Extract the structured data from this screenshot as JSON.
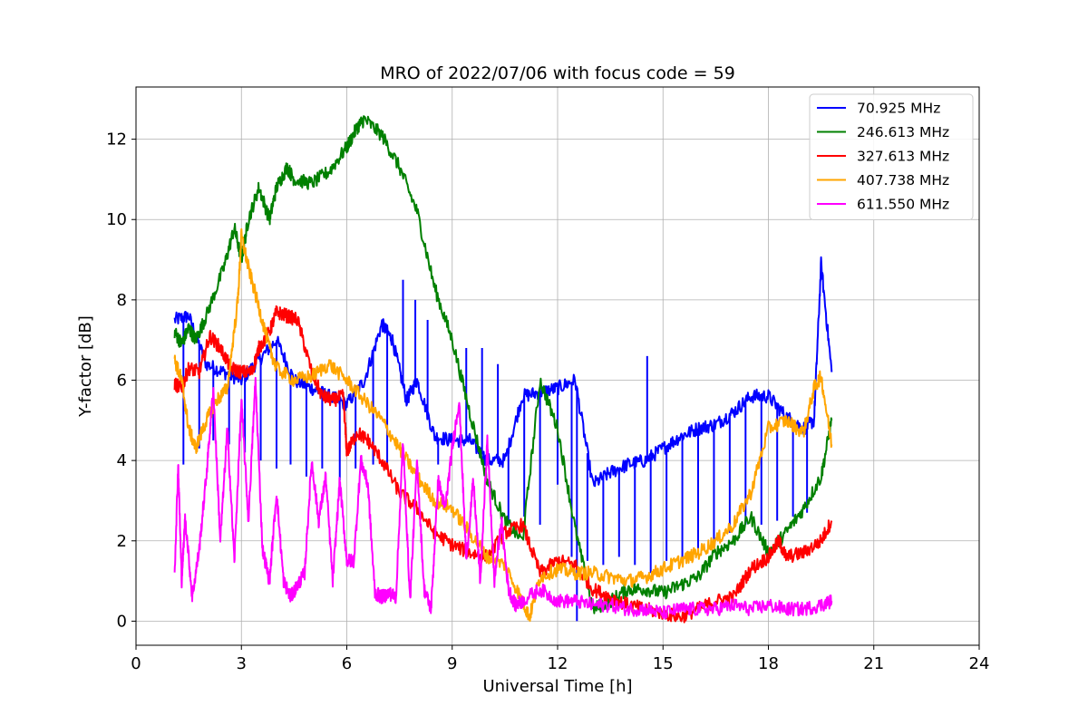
{
  "chart_data": {
    "type": "line",
    "title": "MRO of 2022/07/06 with focus code = 59",
    "xlabel": "Universal Time [h]",
    "ylabel": "Y-factor [dB]",
    "xlim": [
      0,
      24
    ],
    "ylim": [
      -0.6,
      13.3
    ],
    "xticks": [
      0,
      3,
      6,
      9,
      12,
      15,
      18,
      21,
      24
    ],
    "yticks": [
      0,
      2,
      4,
      6,
      8,
      10,
      12
    ],
    "grid": true,
    "legend_position": "top-right",
    "series": [
      {
        "name": " 70.925 MHz",
        "color": "#0000ff",
        "x": [
          1.1,
          1.5,
          2.0,
          2.5,
          3.0,
          3.5,
          4.0,
          4.5,
          5.0,
          5.5,
          6.0,
          6.5,
          7.0,
          7.3,
          7.7,
          8.0,
          8.5,
          9.0,
          9.5,
          10.0,
          10.5,
          11.0,
          11.5,
          12.0,
          12.5,
          13.0,
          13.5,
          14.0,
          14.5,
          15.0,
          15.5,
          16.0,
          16.5,
          17.0,
          17.5,
          18.0,
          18.5,
          19.0,
          19.3,
          19.5,
          19.8
        ],
        "y": [
          7.5,
          7.6,
          6.4,
          6.2,
          6.0,
          6.5,
          7.0,
          6.0,
          5.8,
          5.6,
          5.4,
          6.0,
          7.4,
          7.0,
          5.5,
          6.0,
          4.6,
          4.5,
          4.5,
          4.0,
          4.0,
          5.6,
          5.7,
          5.8,
          6.0,
          3.4,
          3.7,
          3.9,
          4.0,
          4.3,
          4.6,
          4.8,
          4.9,
          5.2,
          5.6,
          5.6,
          5.1,
          4.8,
          5.0,
          8.9,
          6.2
        ],
        "spikes": [
          {
            "x": 1.35,
            "y": 3.9
          },
          {
            "x": 1.8,
            "y": 4.3
          },
          {
            "x": 2.2,
            "y": 4.5
          },
          {
            "x": 2.65,
            "y": 4.4
          },
          {
            "x": 3.1,
            "y": 4.2
          },
          {
            "x": 3.55,
            "y": 4.0
          },
          {
            "x": 4.0,
            "y": 3.8
          },
          {
            "x": 4.4,
            "y": 3.9
          },
          {
            "x": 4.85,
            "y": 3.6
          },
          {
            "x": 5.3,
            "y": 3.8
          },
          {
            "x": 5.8,
            "y": 3.5
          },
          {
            "x": 6.25,
            "y": 3.8
          },
          {
            "x": 6.75,
            "y": 3.9
          },
          {
            "x": 7.15,
            "y": 3.8
          },
          {
            "x": 7.6,
            "y": 8.5
          },
          {
            "x": 7.95,
            "y": 8.0
          },
          {
            "x": 8.3,
            "y": 7.5
          },
          {
            "x": 8.6,
            "y": 3.9
          },
          {
            "x": 9.4,
            "y": 6.8
          },
          {
            "x": 9.85,
            "y": 6.8
          },
          {
            "x": 10.3,
            "y": 6.4
          },
          {
            "x": 10.6,
            "y": 2.5
          },
          {
            "x": 11.05,
            "y": 2.6
          },
          {
            "x": 11.5,
            "y": 2.4
          },
          {
            "x": 12.0,
            "y": 3.4
          },
          {
            "x": 12.4,
            "y": 1.6
          },
          {
            "x": 12.85,
            "y": 1.5
          },
          {
            "x": 13.3,
            "y": 1.4
          },
          {
            "x": 13.75,
            "y": 1.6
          },
          {
            "x": 14.2,
            "y": 1.4
          },
          {
            "x": 14.55,
            "y": 6.6
          },
          {
            "x": 14.65,
            "y": 1.2
          },
          {
            "x": 15.1,
            "y": 1.5
          },
          {
            "x": 15.55,
            "y": 1.6
          },
          {
            "x": 16.0,
            "y": 1.8
          },
          {
            "x": 16.45,
            "y": 2.0
          },
          {
            "x": 16.9,
            "y": 2.2
          },
          {
            "x": 17.35,
            "y": 2.4
          },
          {
            "x": 17.8,
            "y": 2.4
          },
          {
            "x": 18.25,
            "y": 2.5
          },
          {
            "x": 18.7,
            "y": 2.6
          },
          {
            "x": 19.1,
            "y": 2.7
          },
          {
            "x": 12.55,
            "y": 0.0
          }
        ]
      },
      {
        "name": "246.613 MHz",
        "color": "#008000",
        "x": [
          1.1,
          1.3,
          1.5,
          1.7,
          2.0,
          2.5,
          2.8,
          3.0,
          3.2,
          3.5,
          3.8,
          4.0,
          4.3,
          4.5,
          5.0,
          5.5,
          6.0,
          6.3,
          6.5,
          7.0,
          7.5,
          8.0,
          8.5,
          9.0,
          9.5,
          10.0,
          10.5,
          11.0,
          11.5,
          12.0,
          12.5,
          13.0,
          13.5,
          14.0,
          14.5,
          15.0,
          15.5,
          16.0,
          16.5,
          17.0,
          17.5,
          18.0,
          18.5,
          19.0,
          19.5,
          19.8
        ],
        "y": [
          7.2,
          6.9,
          7.3,
          7.0,
          7.6,
          8.8,
          9.8,
          9.0,
          10.0,
          10.8,
          10.0,
          10.8,
          11.3,
          11.0,
          10.9,
          11.2,
          11.8,
          12.3,
          12.5,
          12.1,
          11.3,
          10.2,
          8.3,
          7.0,
          5.2,
          3.5,
          2.5,
          2.0,
          6.0,
          4.8,
          2.3,
          0.3,
          0.5,
          0.8,
          0.8,
          0.7,
          0.9,
          1.1,
          1.7,
          2.0,
          2.6,
          1.7,
          2.2,
          2.8,
          3.6,
          5.0
        ]
      },
      {
        "name": "327.613 MHz",
        "color": "#ff0000",
        "x": [
          1.1,
          1.3,
          1.5,
          1.8,
          2.1,
          2.4,
          2.7,
          3.0,
          3.3,
          3.5,
          3.8,
          4.0,
          4.3,
          4.6,
          5.0,
          5.3,
          5.6,
          5.9,
          6.0,
          6.3,
          6.6,
          7.0,
          7.5,
          8.0,
          8.5,
          9.0,
          9.5,
          10.0,
          10.5,
          11.0,
          11.5,
          12.0,
          12.5,
          13.0,
          13.5,
          14.0,
          14.5,
          15.0,
          15.5,
          16.0,
          16.5,
          17.0,
          17.5,
          18.0,
          18.3,
          18.5,
          19.0,
          19.5,
          19.8
        ],
        "y": [
          5.9,
          5.8,
          6.3,
          6.2,
          7.1,
          6.8,
          6.3,
          6.2,
          6.2,
          6.8,
          7.2,
          7.7,
          7.6,
          7.5,
          6.2,
          5.6,
          5.5,
          5.6,
          4.2,
          4.7,
          4.5,
          4.0,
          3.2,
          2.8,
          2.2,
          1.9,
          1.7,
          1.6,
          2.2,
          2.4,
          1.2,
          1.5,
          1.4,
          0.8,
          0.6,
          0.4,
          0.3,
          0.2,
          0.1,
          0.3,
          0.5,
          0.6,
          1.3,
          1.6,
          2.0,
          1.6,
          1.7,
          2.0,
          2.5
        ]
      },
      {
        "name": "407.738 MHz",
        "color": "#ffa500",
        "x": [
          1.1,
          1.3,
          1.5,
          1.7,
          2.0,
          2.3,
          2.6,
          2.9,
          3.0,
          3.2,
          3.5,
          3.8,
          4.0,
          4.5,
          5.0,
          5.5,
          6.0,
          6.5,
          7.0,
          7.5,
          8.0,
          8.5,
          9.0,
          9.5,
          10.0,
          10.5,
          11.0,
          11.2,
          11.5,
          12.0,
          12.5,
          13.0,
          13.5,
          14.0,
          14.5,
          15.0,
          15.5,
          16.0,
          16.5,
          17.0,
          17.5,
          18.0,
          18.5,
          19.0,
          19.3,
          19.5,
          19.8
        ],
        "y": [
          6.5,
          6.0,
          4.8,
          4.3,
          5.0,
          5.5,
          5.8,
          8.0,
          9.6,
          8.8,
          7.8,
          6.8,
          6.3,
          6.0,
          6.1,
          6.4,
          6.0,
          5.5,
          5.0,
          4.3,
          3.6,
          3.0,
          2.8,
          2.2,
          1.6,
          1.4,
          0.5,
          0.1,
          1.1,
          1.3,
          1.2,
          1.2,
          1.1,
          1.0,
          1.1,
          1.3,
          1.5,
          1.7,
          2.0,
          2.4,
          3.2,
          4.8,
          5.0,
          4.7,
          5.8,
          6.1,
          4.4
        ]
      },
      {
        "name": "611.550 MHz",
        "color": "#ff00ff",
        "x": [
          1.1,
          1.2,
          1.3,
          1.4,
          1.6,
          1.8,
          2.0,
          2.2,
          2.4,
          2.6,
          2.8,
          3.0,
          3.2,
          3.4,
          3.6,
          3.8,
          4.0,
          4.2,
          4.4,
          4.6,
          4.8,
          5.0,
          5.2,
          5.4,
          5.6,
          5.8,
          6.0,
          6.2,
          6.4,
          6.6,
          6.8,
          7.0,
          7.2,
          7.4,
          7.6,
          7.8,
          8.0,
          8.2,
          8.4,
          8.6,
          8.8,
          9.0,
          9.2,
          9.4,
          9.6,
          9.8,
          10.0,
          10.2,
          10.4,
          10.6,
          10.8,
          11.0,
          11.5,
          12.0,
          12.5,
          13.0,
          13.5,
          14.0,
          14.5,
          15.0,
          15.5,
          16.0,
          16.5,
          17.0,
          17.5,
          18.0,
          18.5,
          19.0,
          19.5,
          19.8
        ],
        "y": [
          1.2,
          3.9,
          1.0,
          2.6,
          0.6,
          1.8,
          3.6,
          5.8,
          2.0,
          4.8,
          1.5,
          5.5,
          2.5,
          6.0,
          1.8,
          1.0,
          3.2,
          1.0,
          0.6,
          0.9,
          1.2,
          4.0,
          2.5,
          3.6,
          1.0,
          3.5,
          1.5,
          1.5,
          4.0,
          3.4,
          0.7,
          0.6,
          0.7,
          0.6,
          4.5,
          0.5,
          4.0,
          0.8,
          0.3,
          3.5,
          2.8,
          4.3,
          5.5,
          1.5,
          3.5,
          1.0,
          4.5,
          1.0,
          2.5,
          0.8,
          0.4,
          0.5,
          0.8,
          0.5,
          0.5,
          0.4,
          0.4,
          0.3,
          0.3,
          0.2,
          0.3,
          0.3,
          0.3,
          0.4,
          0.3,
          0.4,
          0.3,
          0.3,
          0.4,
          0.5
        ]
      }
    ]
  }
}
